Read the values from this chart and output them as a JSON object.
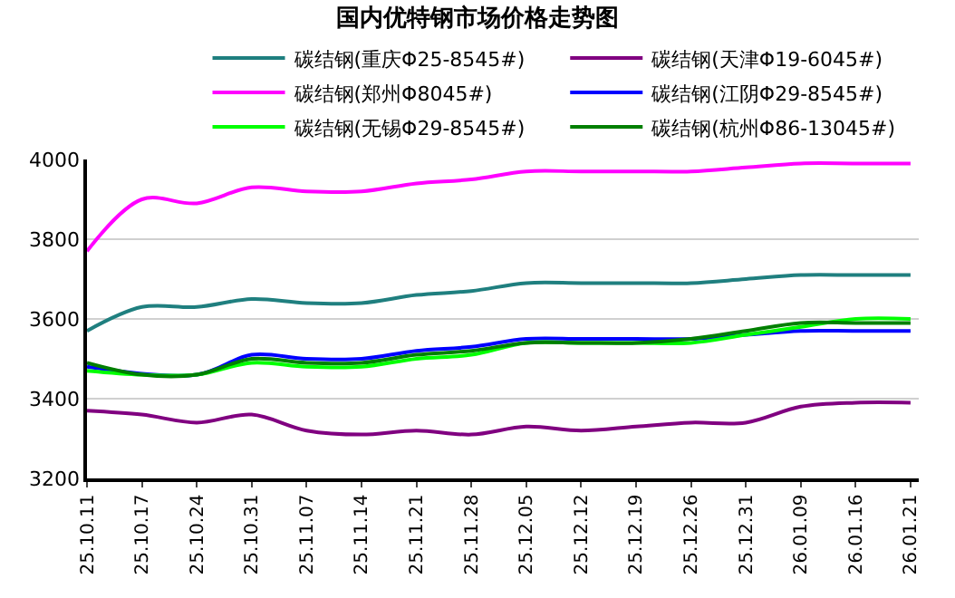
{
  "chart_data": {
    "type": "line",
    "title": "国内优特钢市场价格走势图",
    "categories": [
      "25.10.11",
      "25.10.17",
      "25.10.24",
      "25.10.31",
      "25.11.07",
      "25.11.14",
      "25.11.21",
      "25.11.28",
      "25.12.05",
      "25.12.12",
      "25.12.19",
      "25.12.26",
      "25.12.31",
      "26.01.09",
      "26.01.16",
      "26.01.21"
    ],
    "series": [
      {
        "name": "碳结钢(重庆Φ25-8545#)",
        "color": "#1f7f7f",
        "values": [
          3570,
          3630,
          3630,
          3650,
          3640,
          3640,
          3660,
          3670,
          3690,
          3690,
          3690,
          3690,
          3700,
          3710,
          3710,
          3710
        ]
      },
      {
        "name": "碳结钢(天津Φ19-6045#)",
        "color": "#800080",
        "values": [
          3370,
          3360,
          3340,
          3360,
          3320,
          3310,
          3320,
          3310,
          3330,
          3320,
          3330,
          3340,
          3340,
          3380,
          3390,
          3390
        ]
      },
      {
        "name": "碳结钢(郑州Φ8045#)",
        "color": "#ff00ff",
        "values": [
          3770,
          3900,
          3890,
          3930,
          3920,
          3920,
          3940,
          3950,
          3970,
          3970,
          3970,
          3970,
          3980,
          3990,
          3990,
          3990
        ]
      },
      {
        "name": "碳结钢(江阴Φ29-8545#)",
        "color": "#0000ff",
        "values": [
          3480,
          null,
          3460,
          3510,
          3500,
          3500,
          3520,
          3530,
          3550,
          3550,
          3550,
          3550,
          3560,
          3570,
          3570,
          3570
        ]
      },
      {
        "name": "碳结钢(无锡Φ29-8545#)",
        "color": "#00ff00",
        "values": [
          3470,
          3460,
          3460,
          3490,
          3480,
          3480,
          3500,
          3510,
          3540,
          3540,
          3540,
          3540,
          3560,
          3580,
          3600,
          3600
        ]
      },
      {
        "name": "碳结钢(杭州Φ86-13045#)",
        "color": "#007f00",
        "values": [
          3490,
          3460,
          3460,
          3500,
          3490,
          3490,
          3510,
          3520,
          3540,
          3540,
          3540,
          3550,
          3570,
          3590,
          3590,
          3590
        ]
      }
    ],
    "ylim": [
      3200,
      4000
    ],
    "yticks": [
      3200,
      3400,
      3600,
      3800,
      4000
    ],
    "grid": "y",
    "legend": "top",
    "marker": "none",
    "line_style": "solid"
  }
}
